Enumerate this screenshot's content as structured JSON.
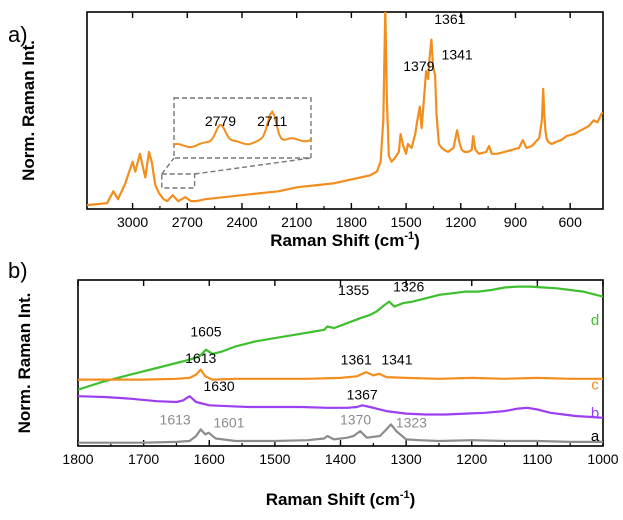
{
  "chart_data": [
    {
      "panel": "a)",
      "type": "line",
      "xlabel": "Raman Shift",
      "xunit_base": "cm",
      "xunit_exp": "-1",
      "ylabel": "Norm. Raman Int.",
      "xlim": [
        3250,
        420
      ],
      "x_reversed": true,
      "ylim": [
        0,
        1
      ],
      "ticks": [
        3000,
        2700,
        2400,
        2100,
        1800,
        1500,
        1200,
        900,
        600
      ],
      "tick_labels": [
        "3000",
        "2700",
        "2400",
        "2100",
        "1800",
        "1500",
        "1200",
        "900",
        "600"
      ],
      "color": "#f28e1e",
      "annotations": [
        {
          "text": "1379",
          "x": 1430,
          "y": 0.7
        },
        {
          "text": "1361",
          "x": 1260,
          "y": 0.94
        },
        {
          "text": "1341",
          "x": 1220,
          "y": 0.76
        }
      ],
      "inset": {
        "x_range": [
          2840,
          2660
        ],
        "labels": [
          {
            "text": "2779",
            "x": 2779
          },
          {
            "text": "2711",
            "x": 2711
          }
        ]
      },
      "series": [
        {
          "x": [
            3250,
            3140,
            3105,
            3080,
            3040,
            3000,
            2985,
            2960,
            2945,
            2930,
            2910,
            2895,
            2875,
            2855,
            2830,
            2810,
            2780,
            2750,
            2711,
            2680,
            2650,
            2600,
            2500,
            2400,
            2300,
            2200,
            2100,
            2000,
            1900,
            1800,
            1700,
            1660,
            1640,
            1625,
            1614,
            1605,
            1595,
            1580,
            1560,
            1540,
            1530,
            1515,
            1500,
            1490,
            1470,
            1450,
            1440,
            1425,
            1415,
            1400,
            1390,
            1379,
            1370,
            1361,
            1352,
            1341,
            1333,
            1320,
            1305,
            1290,
            1270,
            1240,
            1220,
            1208,
            1195,
            1180,
            1160,
            1140,
            1132,
            1120,
            1100,
            1060,
            1045,
            1030,
            1000,
            960,
            920,
            880,
            860,
            840,
            810,
            790,
            770,
            755,
            748,
            742,
            736,
            730,
            720,
            700,
            680,
            650,
            620,
            580,
            540,
            500,
            470,
            450,
            430,
            420
          ],
          "y": [
            0.02,
            0.03,
            0.09,
            0.05,
            0.13,
            0.24,
            0.19,
            0.28,
            0.22,
            0.16,
            0.29,
            0.24,
            0.12,
            0.08,
            0.05,
            0.04,
            0.07,
            0.04,
            0.06,
            0.04,
            0.04,
            0.05,
            0.06,
            0.07,
            0.08,
            0.09,
            0.11,
            0.12,
            0.13,
            0.15,
            0.17,
            0.19,
            0.24,
            0.45,
            1.02,
            0.55,
            0.27,
            0.24,
            0.26,
            0.29,
            0.38,
            0.32,
            0.28,
            0.33,
            0.31,
            0.38,
            0.44,
            0.52,
            0.41,
            0.58,
            0.7,
            0.66,
            0.78,
            0.86,
            0.72,
            0.68,
            0.48,
            0.33,
            0.31,
            0.3,
            0.29,
            0.31,
            0.4,
            0.34,
            0.3,
            0.29,
            0.29,
            0.3,
            0.37,
            0.3,
            0.28,
            0.29,
            0.32,
            0.28,
            0.28,
            0.29,
            0.3,
            0.31,
            0.35,
            0.31,
            0.32,
            0.34,
            0.36,
            0.45,
            0.61,
            0.48,
            0.4,
            0.36,
            0.34,
            0.33,
            0.34,
            0.35,
            0.37,
            0.38,
            0.4,
            0.42,
            0.45,
            0.44,
            0.48,
            0.49
          ]
        }
      ]
    },
    {
      "panel": "b)",
      "type": "line",
      "xlabel": "Raman Shift",
      "xunit_base": "cm",
      "xunit_exp": "-1",
      "ylabel": "Norm. Raman Int.",
      "xlim": [
        1800,
        1000
      ],
      "x_reversed": true,
      "ylim": [
        0,
        1
      ],
      "ticks": [
        1800,
        1700,
        1600,
        1500,
        1400,
        1300,
        1200,
        1100,
        1000
      ],
      "tick_labels": [
        "1800",
        "1700",
        "1600",
        "1500",
        "1400",
        "1300",
        "1200",
        "1100",
        "1000"
      ],
      "series": [
        {
          "name": "d",
          "color": "#3fbf2f",
          "x": [
            1800,
            1760,
            1720,
            1680,
            1650,
            1630,
            1615,
            1605,
            1595,
            1580,
            1560,
            1530,
            1500,
            1470,
            1440,
            1425,
            1420,
            1410,
            1390,
            1370,
            1355,
            1345,
            1336,
            1326,
            1318,
            1305,
            1290,
            1270,
            1250,
            1230,
            1210,
            1190,
            1170,
            1150,
            1130,
            1110,
            1090,
            1070,
            1050,
            1030,
            1010,
            1000
          ],
          "y": [
            0.34,
            0.39,
            0.43,
            0.47,
            0.5,
            0.52,
            0.54,
            0.58,
            0.555,
            0.57,
            0.6,
            0.63,
            0.65,
            0.67,
            0.69,
            0.7,
            0.72,
            0.71,
            0.74,
            0.77,
            0.79,
            0.81,
            0.84,
            0.87,
            0.84,
            0.86,
            0.87,
            0.89,
            0.91,
            0.92,
            0.93,
            0.93,
            0.94,
            0.955,
            0.96,
            0.96,
            0.955,
            0.95,
            0.94,
            0.93,
            0.91,
            0.9
          ]
        },
        {
          "name": "c",
          "color": "#f28e1e",
          "x": [
            1800,
            1700,
            1650,
            1630,
            1620,
            1613,
            1606,
            1595,
            1560,
            1500,
            1450,
            1400,
            1375,
            1361,
            1350,
            1341,
            1330,
            1300,
            1250,
            1200,
            1150,
            1100,
            1050,
            1000
          ],
          "y": [
            0.4,
            0.4,
            0.405,
            0.41,
            0.43,
            0.46,
            0.42,
            0.4,
            0.405,
            0.405,
            0.405,
            0.41,
            0.42,
            0.445,
            0.425,
            0.435,
            0.415,
            0.41,
            0.405,
            0.41,
            0.405,
            0.41,
            0.405,
            0.405
          ]
        },
        {
          "name": "b",
          "color": "#9b3ff0",
          "x": [
            1800,
            1760,
            1720,
            1680,
            1650,
            1640,
            1630,
            1620,
            1600,
            1570,
            1540,
            1500,
            1460,
            1420,
            1390,
            1375,
            1367,
            1355,
            1330,
            1300,
            1270,
            1240,
            1210,
            1180,
            1150,
            1130,
            1115,
            1100,
            1080,
            1060,
            1040,
            1020,
            1000
          ],
          "y": [
            0.3,
            0.295,
            0.285,
            0.27,
            0.265,
            0.275,
            0.3,
            0.265,
            0.245,
            0.24,
            0.235,
            0.235,
            0.235,
            0.23,
            0.23,
            0.235,
            0.245,
            0.235,
            0.21,
            0.195,
            0.19,
            0.19,
            0.195,
            0.2,
            0.21,
            0.225,
            0.23,
            0.22,
            0.2,
            0.19,
            0.18,
            0.175,
            0.17
          ]
        },
        {
          "name": "a",
          "color": "#8c8c8c",
          "x": [
            1800,
            1700,
            1650,
            1630,
            1620,
            1613,
            1606,
            1601,
            1590,
            1560,
            1500,
            1450,
            1425,
            1420,
            1410,
            1390,
            1380,
            1370,
            1360,
            1340,
            1330,
            1323,
            1315,
            1300,
            1280,
            1250,
            1200,
            1150,
            1100,
            1050,
            1000
          ],
          "y": [
            0.02,
            0.02,
            0.025,
            0.03,
            0.06,
            0.1,
            0.07,
            0.08,
            0.045,
            0.03,
            0.03,
            0.035,
            0.045,
            0.06,
            0.04,
            0.05,
            0.06,
            0.09,
            0.05,
            0.06,
            0.1,
            0.13,
            0.09,
            0.04,
            0.035,
            0.03,
            0.035,
            0.03,
            0.03,
            0.025,
            0.025
          ]
        }
      ],
      "annotations": [
        {
          "text": "1605",
          "x": 1605,
          "y": 0.66,
          "color": "#000000"
        },
        {
          "text": "1355",
          "x": 1380,
          "y": 0.91,
          "color": "#000000"
        },
        {
          "text": "1326",
          "x": 1296,
          "y": 0.93,
          "color": "#000000"
        },
        {
          "text": "1613",
          "x": 1613,
          "y": 0.5,
          "color": "#000000"
        },
        {
          "text": "1361",
          "x": 1376,
          "y": 0.49,
          "color": "#000000"
        },
        {
          "text": "1341",
          "x": 1314,
          "y": 0.49,
          "color": "#000000"
        },
        {
          "text": "1630",
          "x": 1585,
          "y": 0.33,
          "color": "#000000"
        },
        {
          "text": "1367",
          "x": 1367,
          "y": 0.28,
          "color": "#000000"
        },
        {
          "text": "1613",
          "x": 1652,
          "y": 0.13,
          "color": "#8c8c8c"
        },
        {
          "text": "1601",
          "x": 1570,
          "y": 0.11,
          "color": "#8c8c8c"
        },
        {
          "text": "1370",
          "x": 1377,
          "y": 0.13,
          "color": "#8c8c8c"
        },
        {
          "text": "1323",
          "x": 1292,
          "y": 0.11,
          "color": "#8c8c8c"
        }
      ],
      "series_labels": [
        {
          "text": "d",
          "y": 0.73,
          "color": "#3fbf2f"
        },
        {
          "text": "c",
          "y": 0.34,
          "color": "#f28e1e"
        },
        {
          "text": "b",
          "y": 0.17,
          "color": "#9b3ff0"
        },
        {
          "text": "a",
          "y": 0.03,
          "color": "#000000"
        }
      ]
    }
  ]
}
